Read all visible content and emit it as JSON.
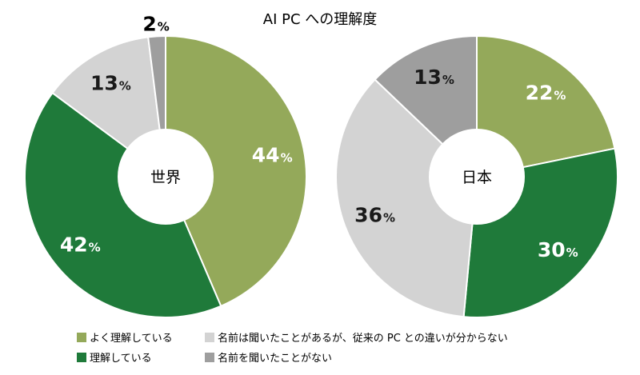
{
  "chart_data": {
    "type": "pie",
    "title": "AI PC への理解度",
    "legend": {
      "placement": "bottom",
      "entries": [
        {
          "label": "よく理解している",
          "color": "#94a95a"
        },
        {
          "label": "名前は聞いたことがあるが、従来の PC との違いが分からない",
          "color": "#d3d3d3"
        },
        {
          "label": "理解している",
          "color": "#1f7a3a"
        },
        {
          "label": "名前を聞いたことがない",
          "color": "#9e9e9e"
        }
      ]
    },
    "charts": [
      {
        "name": "世界",
        "slices": [
          {
            "label": "よく理解している",
            "value": 44,
            "display": "44",
            "color": "#94a95a",
            "text_color": "#ffffff"
          },
          {
            "label": "理解している",
            "value": 42,
            "display": "42",
            "color": "#1f7a3a",
            "text_color": "#ffffff"
          },
          {
            "label": "名前は聞いたことがあるが、従来の PC との違いが分からない",
            "value": 13,
            "display": "13",
            "color": "#d3d3d3",
            "text_color": "#1a1a1a"
          },
          {
            "label": "名前を聞いたことがない",
            "value": 2,
            "display": "2",
            "color": "#9e9e9e",
            "text_color": "#1a1a1a"
          }
        ]
      },
      {
        "name": "日本",
        "slices": [
          {
            "label": "よく理解している",
            "value": 22,
            "display": "22",
            "color": "#94a95a",
            "text_color": "#ffffff"
          },
          {
            "label": "理解している",
            "value": 30,
            "display": "30",
            "color": "#1f7a3a",
            "text_color": "#ffffff"
          },
          {
            "label": "名前は聞いたことがあるが、従来の PC との違いが分からない",
            "value": 36,
            "display": "36",
            "color": "#d3d3d3",
            "text_color": "#1a1a1a"
          },
          {
            "label": "名前を聞いたことがない",
            "value": 13,
            "display": "13",
            "color": "#9e9e9e",
            "text_color": "#1a1a1a"
          }
        ]
      }
    ],
    "value_suffix": "%"
  }
}
